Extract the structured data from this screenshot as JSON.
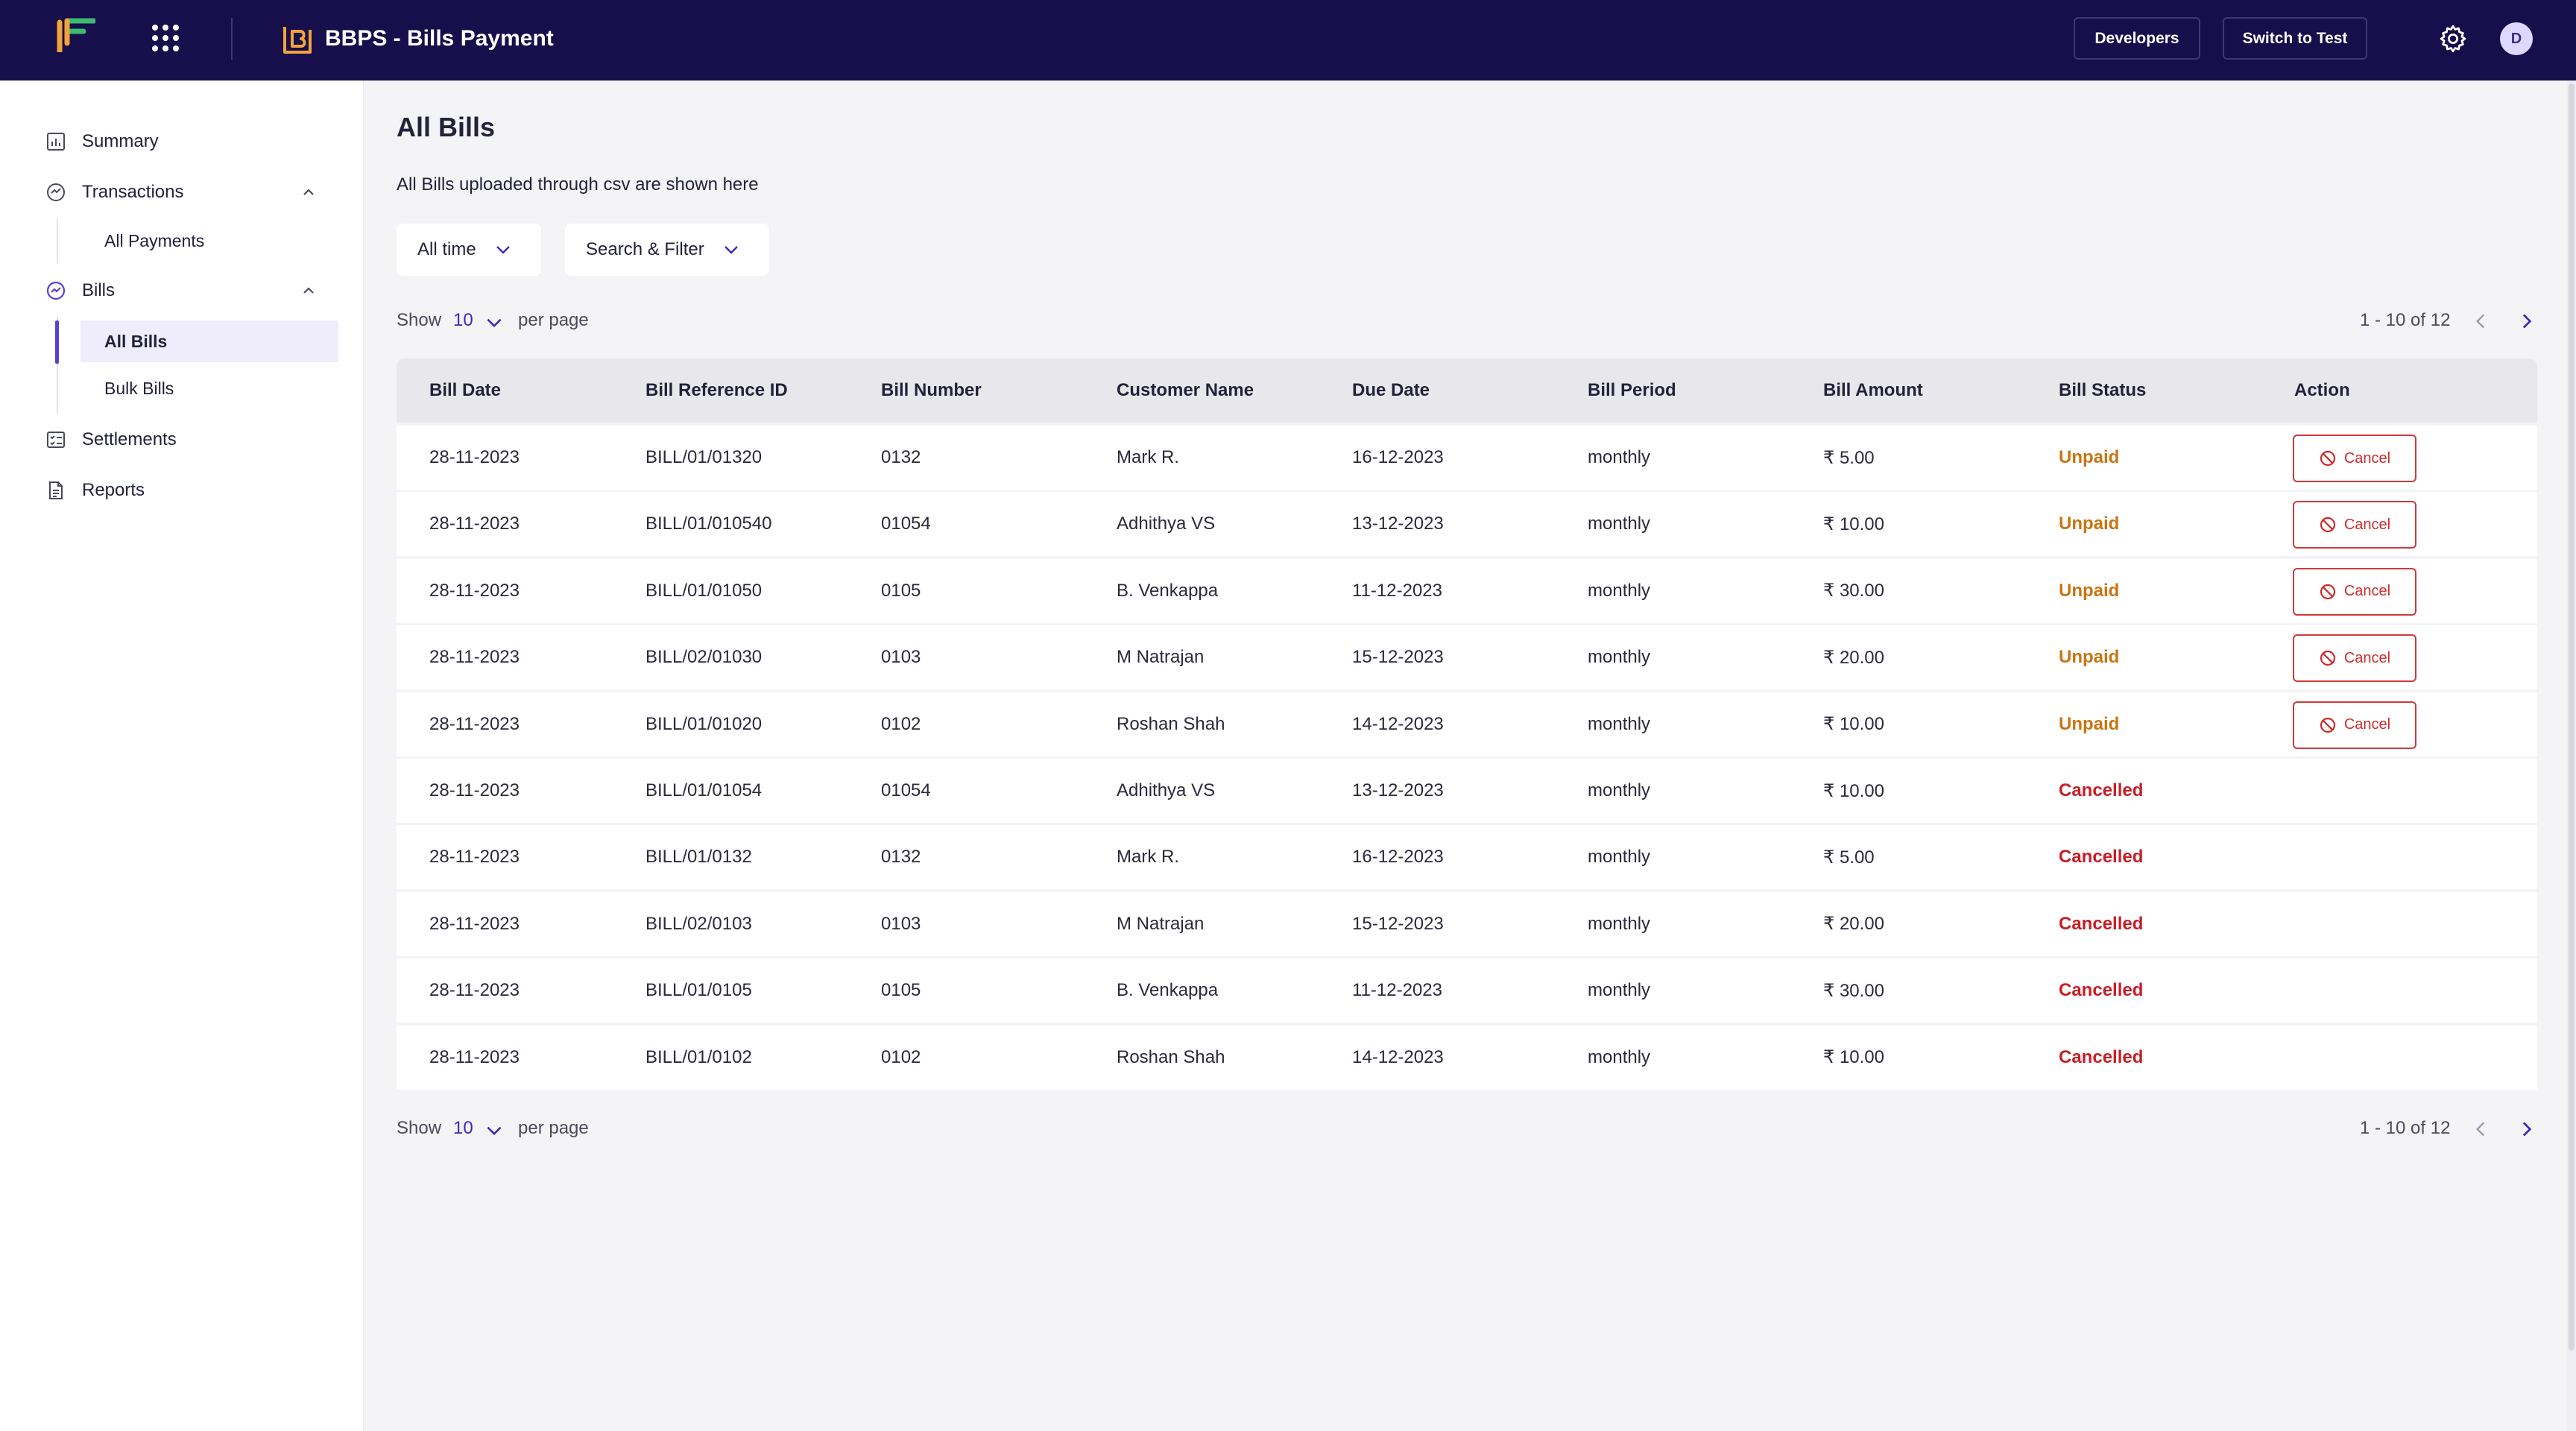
{
  "header": {
    "app_title": "BBPS - Bills Payment",
    "developers_label": "Developers",
    "switch_label": "Switch to Test",
    "avatar_initial": "D"
  },
  "sidebar": {
    "items": [
      {
        "label": "Summary",
        "icon": "summary-chart-icon"
      },
      {
        "label": "Transactions",
        "icon": "transactions-icon"
      },
      {
        "label": "All Payments"
      },
      {
        "label": "Bills",
        "icon": "bills-icon"
      },
      {
        "label": "All Bills"
      },
      {
        "label": "Bulk Bills"
      },
      {
        "label": "Settlements",
        "icon": "settlements-icon"
      },
      {
        "label": "Reports",
        "icon": "reports-icon"
      }
    ]
  },
  "main": {
    "title": "All Bills",
    "description": "All Bills uploaded through csv are shown here",
    "filters": {
      "time": "All time",
      "search": "Search & Filter"
    },
    "pager": {
      "show": "Show",
      "per_page_value": "10",
      "per_page": "per page",
      "range": "1 - 10 of 12"
    },
    "columns": [
      "Bill Date",
      "Bill Reference ID",
      "Bill Number",
      "Customer Name",
      "Due Date",
      "Bill Period",
      "Bill Amount",
      "Bill Status",
      "Action"
    ],
    "cancel_label": "Cancel",
    "rows": [
      {
        "bill_date": "28-11-2023",
        "ref_id": "BILL/01/01320",
        "bill_no": "0132",
        "customer": "Mark R.",
        "due_date": "16-12-2023",
        "period": "monthly",
        "amount": "₹ 5.00",
        "status": "Unpaid"
      },
      {
        "bill_date": "28-11-2023",
        "ref_id": "BILL/01/010540",
        "bill_no": "01054",
        "customer": "Adhithya VS",
        "due_date": "13-12-2023",
        "period": "monthly",
        "amount": "₹ 10.00",
        "status": "Unpaid"
      },
      {
        "bill_date": "28-11-2023",
        "ref_id": "BILL/01/01050",
        "bill_no": "0105",
        "customer": "B. Venkappa",
        "due_date": "11-12-2023",
        "period": "monthly",
        "amount": "₹ 30.00",
        "status": "Unpaid"
      },
      {
        "bill_date": "28-11-2023",
        "ref_id": "BILL/02/01030",
        "bill_no": "0103",
        "customer": "M Natrajan",
        "due_date": "15-12-2023",
        "period": "monthly",
        "amount": "₹ 20.00",
        "status": "Unpaid"
      },
      {
        "bill_date": "28-11-2023",
        "ref_id": "BILL/01/01020",
        "bill_no": "0102",
        "customer": "Roshan Shah",
        "due_date": "14-12-2023",
        "period": "monthly",
        "amount": "₹ 10.00",
        "status": "Unpaid"
      },
      {
        "bill_date": "28-11-2023",
        "ref_id": "BILL/01/01054",
        "bill_no": "01054",
        "customer": "Adhithya VS",
        "due_date": "13-12-2023",
        "period": "monthly",
        "amount": "₹ 10.00",
        "status": "Cancelled"
      },
      {
        "bill_date": "28-11-2023",
        "ref_id": "BILL/01/0132",
        "bill_no": "0132",
        "customer": "Mark R.",
        "due_date": "16-12-2023",
        "period": "monthly",
        "amount": "₹ 5.00",
        "status": "Cancelled"
      },
      {
        "bill_date": "28-11-2023",
        "ref_id": "BILL/02/0103",
        "bill_no": "0103",
        "customer": "M Natrajan",
        "due_date": "15-12-2023",
        "period": "monthly",
        "amount": "₹ 20.00",
        "status": "Cancelled"
      },
      {
        "bill_date": "28-11-2023",
        "ref_id": "BILL/01/0105",
        "bill_no": "0105",
        "customer": "B. Venkappa",
        "due_date": "11-12-2023",
        "period": "monthly",
        "amount": "₹ 30.00",
        "status": "Cancelled"
      },
      {
        "bill_date": "28-11-2023",
        "ref_id": "BILL/01/0102",
        "bill_no": "0102",
        "customer": "Roshan Shah",
        "due_date": "14-12-2023",
        "period": "monthly",
        "amount": "₹ 10.00",
        "status": "Cancelled"
      }
    ]
  },
  "colors": {
    "header_bg": "#160f4c",
    "accent": "#5b3ed6",
    "unpaid": "#c97412",
    "cancelled": "#c81d25"
  }
}
